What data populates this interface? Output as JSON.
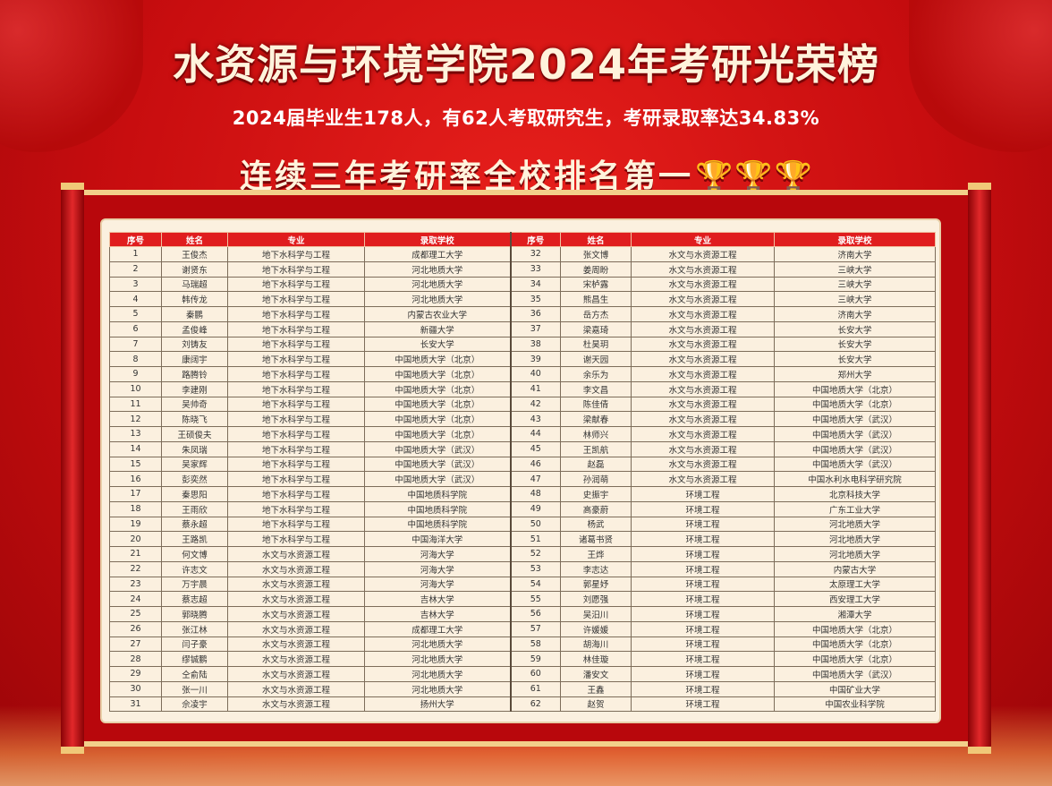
{
  "title": "水资源与环境学院2024年考研光荣榜",
  "subtitle": "2024届毕业生178人，有62人考取研究生，考研录取率达34.83%",
  "headline": "连续三年考研率全校排名第一",
  "trophy_icons": [
    "trophy-icon",
    "trophy-icon",
    "trophy-icon"
  ],
  "colors": {
    "background": "#c80d0f",
    "header": "#e01d1e",
    "panel": "#fbf0df",
    "gold": "#f3c24a"
  },
  "table": {
    "headers": [
      "序号",
      "姓名",
      "专业",
      "录取学校"
    ],
    "rows": [
      [
        "1",
        "王俊杰",
        "地下水科学与工程",
        "成都理工大学"
      ],
      [
        "2",
        "谢贤东",
        "地下水科学与工程",
        "河北地质大学"
      ],
      [
        "3",
        "马瑞超",
        "地下水科学与工程",
        "河北地质大学"
      ],
      [
        "4",
        "韩传龙",
        "地下水科学与工程",
        "河北地质大学"
      ],
      [
        "5",
        "秦鹏",
        "地下水科学与工程",
        "内蒙古农业大学"
      ],
      [
        "6",
        "孟俊峰",
        "地下水科学与工程",
        "新疆大学"
      ],
      [
        "7",
        "刘铸友",
        "地下水科学与工程",
        "长安大学"
      ],
      [
        "8",
        "康阔宇",
        "地下水科学与工程",
        "中国地质大学（北京）"
      ],
      [
        "9",
        "路腾铃",
        "地下水科学与工程",
        "中国地质大学（北京）"
      ],
      [
        "10",
        "李建刚",
        "地下水科学与工程",
        "中国地质大学（北京）"
      ],
      [
        "11",
        "吴帅奇",
        "地下水科学与工程",
        "中国地质大学（北京）"
      ],
      [
        "12",
        "陈晓飞",
        "地下水科学与工程",
        "中国地质大学（北京）"
      ],
      [
        "13",
        "王硕俊夫",
        "地下水科学与工程",
        "中国地质大学（北京）"
      ],
      [
        "14",
        "朱凤瑞",
        "地下水科学与工程",
        "中国地质大学（武汉）"
      ],
      [
        "15",
        "吴家辉",
        "地下水科学与工程",
        "中国地质大学（武汉）"
      ],
      [
        "16",
        "彭奕然",
        "地下水科学与工程",
        "中国地质大学（武汉）"
      ],
      [
        "17",
        "秦思阳",
        "地下水科学与工程",
        "中国地质科学院"
      ],
      [
        "18",
        "王雨欣",
        "地下水科学与工程",
        "中国地质科学院"
      ],
      [
        "19",
        "蔡永超",
        "地下水科学与工程",
        "中国地质科学院"
      ],
      [
        "20",
        "王路凯",
        "地下水科学与工程",
        "中国海洋大学"
      ],
      [
        "21",
        "何文博",
        "水文与水资源工程",
        "河海大学"
      ],
      [
        "22",
        "许志文",
        "水文与水资源工程",
        "河海大学"
      ],
      [
        "23",
        "万宇晨",
        "水文与水资源工程",
        "河海大学"
      ],
      [
        "24",
        "蔡志超",
        "水文与水资源工程",
        "吉林大学"
      ],
      [
        "25",
        "郭晓腾",
        "水文与水资源工程",
        "吉林大学"
      ],
      [
        "26",
        "张江林",
        "水文与水资源工程",
        "成都理工大学"
      ],
      [
        "27",
        "闫子豪",
        "水文与水资源工程",
        "河北地质大学"
      ],
      [
        "28",
        "缪铖鹏",
        "水文与水资源工程",
        "河北地质大学"
      ],
      [
        "29",
        "仝俞陆",
        "水文与水资源工程",
        "河北地质大学"
      ],
      [
        "30",
        "张一川",
        "水文与水资源工程",
        "河北地质大学"
      ],
      [
        "31",
        "佘凌宇",
        "水文与水资源工程",
        "扬州大学"
      ],
      [
        "32",
        "张文博",
        "水文与水资源工程",
        "济南大学"
      ],
      [
        "33",
        "姜周盼",
        "水文与水资源工程",
        "三峡大学"
      ],
      [
        "34",
        "宋栌露",
        "水文与水资源工程",
        "三峡大学"
      ],
      [
        "35",
        "熊昌生",
        "水文与水资源工程",
        "三峡大学"
      ],
      [
        "36",
        "岳方杰",
        "水文与水资源工程",
        "济南大学"
      ],
      [
        "37",
        "梁嘉琦",
        "水文与水资源工程",
        "长安大学"
      ],
      [
        "38",
        "杜昊玥",
        "水文与水资源工程",
        "长安大学"
      ],
      [
        "39",
        "谢天园",
        "水文与水资源工程",
        "长安大学"
      ],
      [
        "40",
        "余乐为",
        "水文与水资源工程",
        "郑州大学"
      ],
      [
        "41",
        "李文昌",
        "水文与水资源工程",
        "中国地质大学（北京）"
      ],
      [
        "42",
        "陈佳倩",
        "水文与水资源工程",
        "中国地质大学（北京）"
      ],
      [
        "43",
        "梁献春",
        "水文与水资源工程",
        "中国地质大学（武汉）"
      ],
      [
        "44",
        "林师兴",
        "水文与水资源工程",
        "中国地质大学（武汉）"
      ],
      [
        "45",
        "王凯航",
        "水文与水资源工程",
        "中国地质大学（武汉）"
      ],
      [
        "46",
        "赵磊",
        "水文与水资源工程",
        "中国地质大学（武汉）"
      ],
      [
        "47",
        "孙润萌",
        "水文与水资源工程",
        "中国水利水电科学研究院"
      ],
      [
        "48",
        "史振宇",
        "环境工程",
        "北京科技大学"
      ],
      [
        "49",
        "高豪蔚",
        "环境工程",
        "广东工业大学"
      ],
      [
        "50",
        "杨武",
        "环境工程",
        "河北地质大学"
      ],
      [
        "51",
        "诸葛书贤",
        "环境工程",
        "河北地质大学"
      ],
      [
        "52",
        "王烨",
        "环境工程",
        "河北地质大学"
      ],
      [
        "53",
        "李志达",
        "环境工程",
        "内蒙古大学"
      ],
      [
        "54",
        "郭星妤",
        "环境工程",
        "太原理工大学"
      ],
      [
        "55",
        "刘愿强",
        "环境工程",
        "西安理工大学"
      ],
      [
        "56",
        "吴汨川",
        "环境工程",
        "湘潭大学"
      ],
      [
        "57",
        "许媛媛",
        "环境工程",
        "中国地质大学（北京）"
      ],
      [
        "58",
        "胡海川",
        "环境工程",
        "中国地质大学（北京）"
      ],
      [
        "59",
        "林佳璇",
        "环境工程",
        "中国地质大学（北京）"
      ],
      [
        "60",
        "潘安文",
        "环境工程",
        "中国地质大学（武汉）"
      ],
      [
        "61",
        "王鑫",
        "环境工程",
        "中国矿业大学"
      ],
      [
        "62",
        "赵贺",
        "环境工程",
        "中国农业科学院"
      ]
    ]
  }
}
